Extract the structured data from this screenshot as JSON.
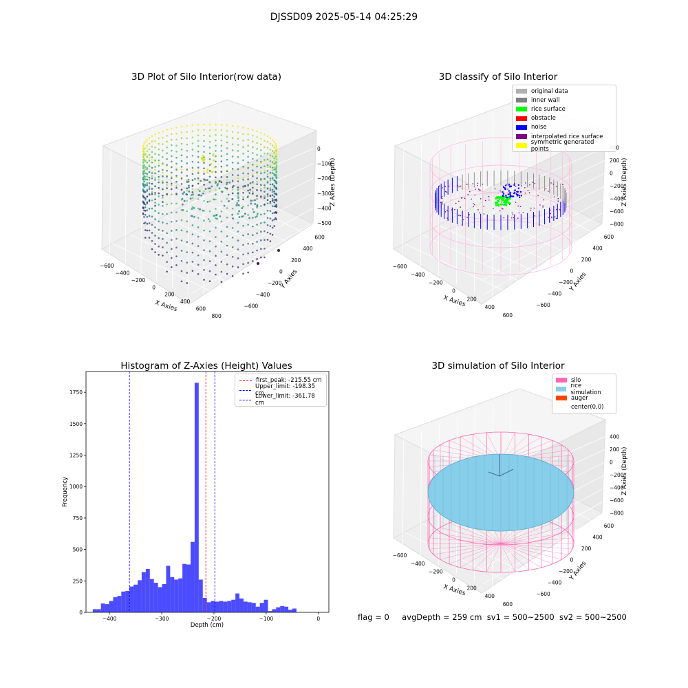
{
  "page_title": "DJSSD09 2025-05-14 04:25:29",
  "footer": {
    "flag": "flag = 0",
    "avg_depth": "avgDepth = 259 cm",
    "sv1": "sv1 = 500~2500",
    "sv2": "sv2 = 500~2500"
  },
  "chart_data": [
    {
      "type": "scatter",
      "title": "3D Plot of Silo Interior(row data)",
      "xlabel": "X Axies",
      "ylabel": "Y Axies",
      "zlabel": "Z Axies (Depth)",
      "x_ticks": [
        "−600",
        "−400",
        "−200",
        "0",
        "200",
        "400",
        "600",
        "800"
      ],
      "y_ticks": [
        "−600",
        "−400",
        "−200",
        "0",
        "200",
        "400",
        "600"
      ],
      "z_ticks": [
        "0",
        "−100",
        "−200",
        "−300",
        "−400",
        "−500"
      ],
      "colormap": "viridis",
      "zlim": [
        -560,
        20
      ]
    },
    {
      "type": "scatter",
      "title": "3D classify of Silo Interior",
      "xlabel": "X Axies",
      "ylabel": "Y Axies",
      "zlabel": "Z Axies (Depth)",
      "x_ticks": [
        "−600",
        "−400",
        "−200",
        "0",
        "200",
        "400",
        "600"
      ],
      "y_ticks": [
        "−600",
        "−400",
        "−200",
        "0",
        "200",
        "400",
        "600"
      ],
      "z_ticks": [
        "400",
        "200",
        "0",
        "−200",
        "−400",
        "−600",
        "−800"
      ],
      "z_ticks_partial": [
        "?00",
        "?00"
      ],
      "legend": [
        {
          "label": "original data",
          "color": "#b0b0b0"
        },
        {
          "label": "inner wall",
          "color": "#808080"
        },
        {
          "label": "rice surface",
          "color": "#00ff00"
        },
        {
          "label": "obstacle",
          "color": "#ff0000"
        },
        {
          "label": "noise",
          "color": "#0000ff"
        },
        {
          "label": "interpolated rice surface",
          "color": "#800080"
        },
        {
          "label": "symmetric generated points",
          "color": "#ffff00"
        }
      ]
    },
    {
      "type": "bar",
      "title": "Histogram of Z-Axies (Height) Values",
      "xlabel": "Depth (cm)",
      "ylabel": "Frequency",
      "xlim": [
        -445,
        20
      ],
      "ylim": [
        0,
        1915
      ],
      "x_ticks": [
        -400,
        -300,
        -200,
        -100,
        0
      ],
      "y_ticks": [
        0,
        250,
        500,
        750,
        1000,
        1250,
        1500,
        1750
      ],
      "bar_color": "#0000ff",
      "bins_start": -432,
      "bin_width": 7.8,
      "values": [
        25,
        25,
        70,
        65,
        90,
        120,
        130,
        165,
        170,
        205,
        220,
        255,
        320,
        345,
        265,
        235,
        200,
        225,
        370,
        280,
        260,
        270,
        385,
        380,
        560,
        1825,
        260,
        115,
        80,
        90,
        85,
        90,
        85,
        90,
        100,
        150,
        110,
        85,
        80,
        75,
        45,
        75,
        100,
        10,
        25,
        40,
        50,
        45,
        20,
        30
      ],
      "lines": [
        {
          "label": "first_peak: -215.55 cm",
          "x": -215.55,
          "color": "#ff0000"
        },
        {
          "label": "Upper_limit: -198.35 cm",
          "x": -198.35,
          "color": "#0000ff"
        },
        {
          "label": "Lower_limit: -361.78 cm",
          "x": -361.78,
          "color": "#0000ff"
        }
      ]
    },
    {
      "type": "scatter",
      "title": "3D simulation of Silo Interior",
      "xlabel": "X Axies",
      "ylabel": "Y Axies",
      "zlabel": "Z Axies (Depth)",
      "x_ticks": [
        "−600",
        "−400",
        "−200",
        "0",
        "200",
        "400",
        "600"
      ],
      "y_ticks": [
        "−600",
        "−400",
        "−200",
        "0",
        "200",
        "400",
        "600"
      ],
      "z_ticks": [
        "400",
        "200",
        "0",
        "−200",
        "−400",
        "−600",
        "−800"
      ],
      "legend": [
        {
          "label": "silo",
          "color": "#ff69b4"
        },
        {
          "label": "rice simulation",
          "color": "#87ceeb"
        },
        {
          "label": "auger",
          "color": "#ff4500"
        },
        {
          "label": "center(0,0)",
          "color": "#ffffff"
        }
      ]
    }
  ]
}
